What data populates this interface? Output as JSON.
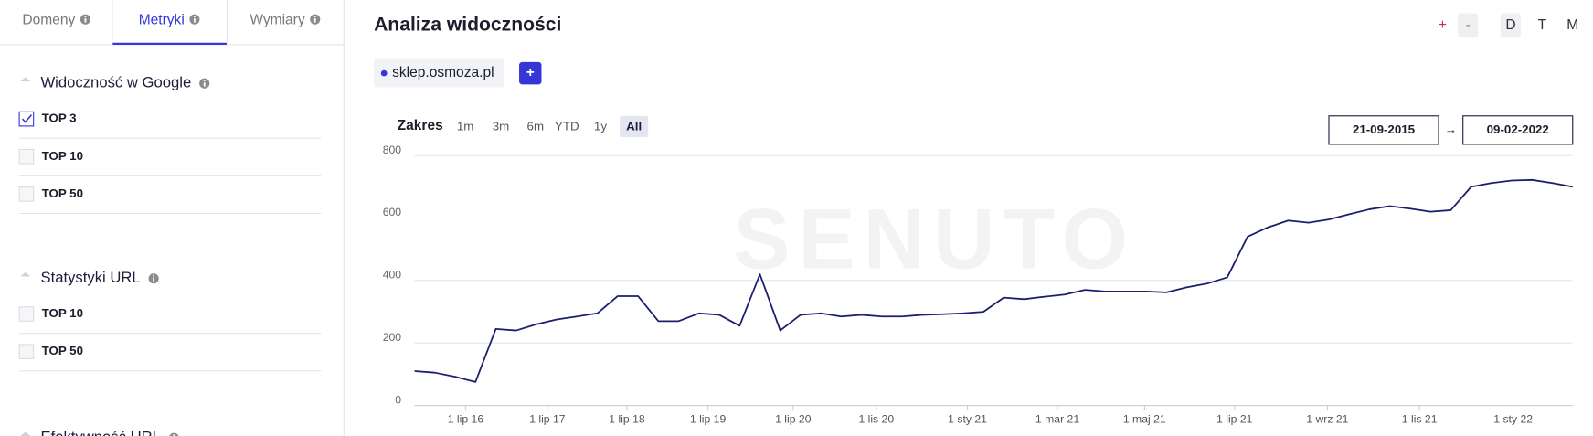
{
  "sidebar": {
    "tabs": [
      "Domeny",
      "Metryki",
      "Wymiary"
    ],
    "active_tab": 1,
    "sections": [
      {
        "title": "Widoczność w Google",
        "items": [
          {
            "label": "TOP 3",
            "checked": true
          },
          {
            "label": "TOP 10",
            "checked": false
          },
          {
            "label": "TOP 50",
            "checked": false
          }
        ]
      },
      {
        "title": "Statystyki URL",
        "items": [
          {
            "label": "TOP 10",
            "checked": false
          },
          {
            "label": "TOP 50",
            "checked": false
          }
        ]
      },
      {
        "title": "Efektywność URL"
      }
    ]
  },
  "header": {
    "title": "Analiza widoczności",
    "zoom": [
      "+",
      "-"
    ],
    "periods": [
      "D",
      "T",
      "M"
    ]
  },
  "domains": {
    "add": "+"
  },
  "range": {
    "label": "Zakres",
    "buttons": [
      "1m",
      "3m",
      "6m",
      "YTD",
      "1y",
      "All"
    ],
    "active": 5,
    "from": "21-09-2015",
    "arrow": "→",
    "to": "09-02-2022"
  },
  "watermark": "SENUTO",
  "chart_data": {
    "type": "line",
    "x": [
      "2015-09-21",
      "2016-01-15",
      "2016-05-10",
      "2016-08-19",
      "2016-11-16",
      "2017-02-13",
      "2017-05-13",
      "2017-08-12",
      "2017-11-14",
      "2018-02-15",
      "2018-05-20",
      "2018-08-20",
      "2018-11-19",
      "2019-02-19",
      "2019-05-21",
      "2019-08-22",
      "2019-11-23",
      "2020-02-25",
      "2020-05-29",
      "2020-07-20",
      "2020-08-18",
      "2020-09-16",
      "2020-10-16",
      "2020-11-07",
      "2020-11-20",
      "2020-12-03",
      "2020-12-16",
      "2020-12-29",
      "2021-01-12",
      "2021-01-25",
      "2021-02-07",
      "2021-02-20",
      "2021-03-06",
      "2021-03-20",
      "2021-04-04",
      "2021-04-18",
      "2021-05-02",
      "2021-05-16",
      "2021-05-30",
      "2021-06-12",
      "2021-06-26",
      "2021-07-10",
      "2021-07-23",
      "2021-08-06",
      "2021-08-19",
      "2021-09-02",
      "2021-09-15",
      "2021-09-29",
      "2021-10-12",
      "2021-10-26",
      "2021-11-08",
      "2021-11-22",
      "2021-12-05",
      "2021-12-18",
      "2021-12-31",
      "2022-01-14",
      "2022-01-27",
      "2022-02-09"
    ],
    "series": [
      {
        "name": "sklep.osmoza.pl",
        "color": "#1b1f6e",
        "values": [
          110,
          105,
          92,
          75,
          245,
          240,
          260,
          275,
          285,
          295,
          350,
          350,
          270,
          270,
          295,
          290,
          255,
          420,
          240,
          290,
          295,
          285,
          290,
          285,
          285,
          290,
          292,
          295,
          300,
          345,
          340,
          348,
          355,
          370,
          365,
          365,
          365,
          362,
          378,
          390,
          410,
          540,
          570,
          592,
          585,
          595,
          612,
          628,
          638,
          630,
          620,
          625,
          700,
          712,
          720,
          722,
          712,
          700
        ]
      }
    ],
    "ylim": [
      0,
      800
    ],
    "yticks": [
      0,
      200,
      400,
      600,
      800
    ],
    "xticks": [
      {
        "value": "2016-07-01",
        "label": "1 lip 16"
      },
      {
        "value": "2017-07-01",
        "label": "1 lip 17"
      },
      {
        "value": "2018-07-01",
        "label": "1 lip 18"
      },
      {
        "value": "2019-07-01",
        "label": "1 lip 19"
      },
      {
        "value": "2020-07-01",
        "label": "1 lip 20"
      },
      {
        "value": "2020-11-01",
        "label": "1 lis 20"
      },
      {
        "value": "2021-01-01",
        "label": "1 sty 21"
      },
      {
        "value": "2021-03-01",
        "label": "1 mar 21"
      },
      {
        "value": "2021-05-01",
        "label": "1 maj 21"
      },
      {
        "value": "2021-07-01",
        "label": "1 lip 21"
      },
      {
        "value": "2021-09-01",
        "label": "1 wrz 21"
      },
      {
        "value": "2021-11-01",
        "label": "1 lis 21"
      },
      {
        "value": "2022-01-01",
        "label": "1 sty 22"
      }
    ],
    "grid": true
  }
}
